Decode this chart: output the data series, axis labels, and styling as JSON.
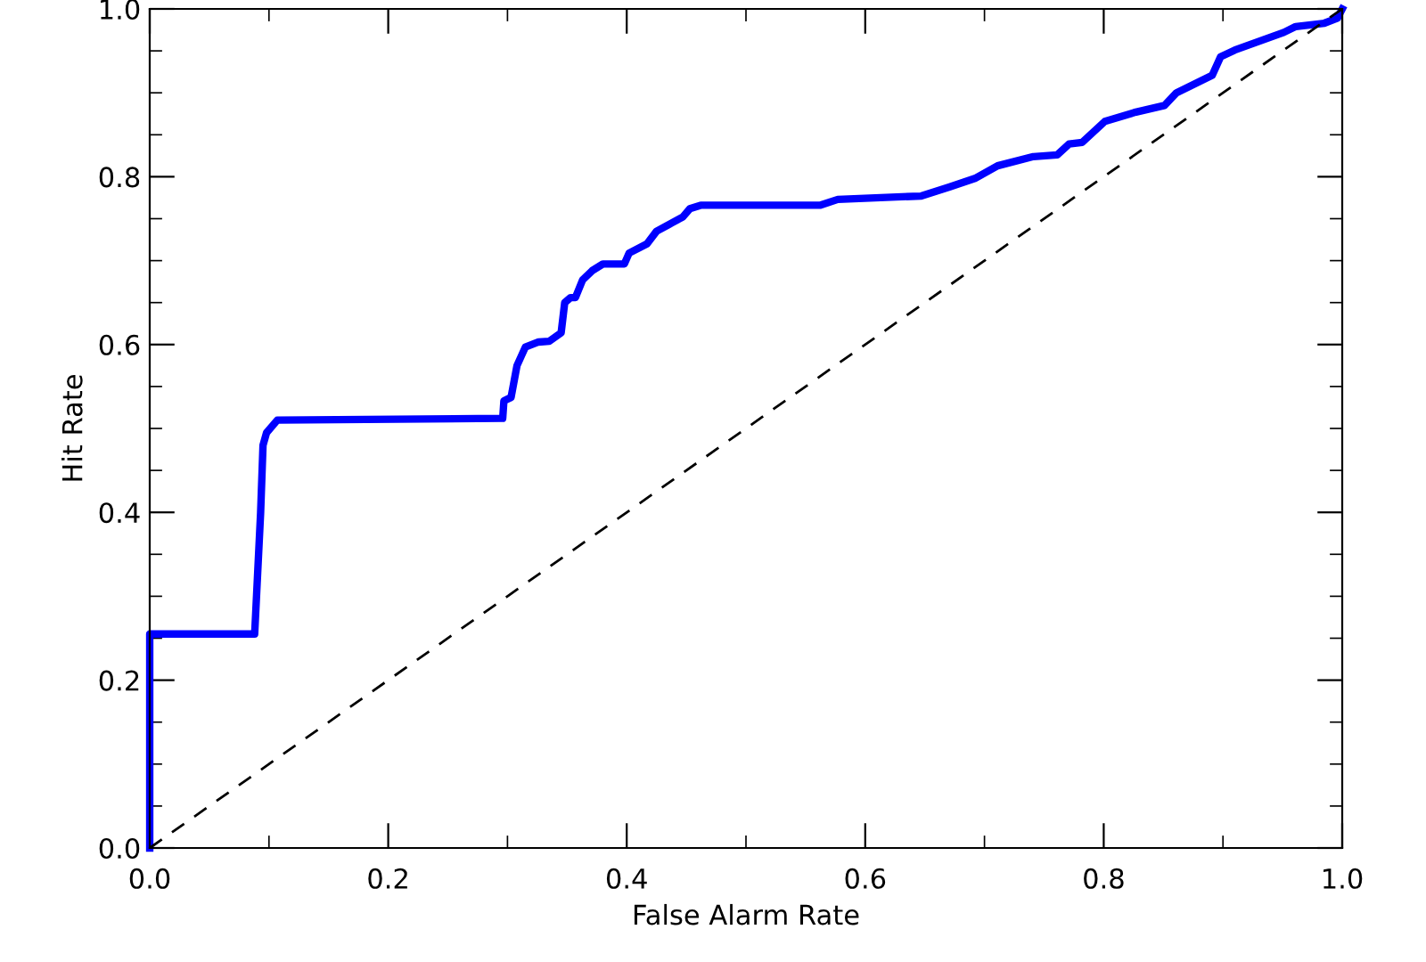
{
  "chart_data": {
    "type": "line",
    "xlabel": "False Alarm Rate",
    "ylabel": "Hit Rate",
    "xlim": [
      0,
      1
    ],
    "ylim": [
      0,
      1
    ],
    "xticks": [
      {
        "value": 0,
        "label": "0.0"
      },
      {
        "value": 0.2,
        "label": "0.2"
      },
      {
        "value": 0.4,
        "label": "0.4"
      },
      {
        "value": 0.6,
        "label": "0.6"
      },
      {
        "value": 0.8,
        "label": "0.8"
      },
      {
        "value": 1,
        "label": "1.0"
      }
    ],
    "yticks": [
      {
        "value": 0,
        "label": "0.0"
      },
      {
        "value": 0.2,
        "label": "0.2"
      },
      {
        "value": 0.4,
        "label": "0.4"
      },
      {
        "value": 0.6,
        "label": "0.6"
      },
      {
        "value": 0.8,
        "label": "0.8"
      },
      {
        "value": 1,
        "label": "1.0"
      }
    ],
    "grid": false,
    "legend": false,
    "marker": "none",
    "series": [
      {
        "color": "#0000ff",
        "line_style": "solid",
        "x": [
          0,
          0,
          0.088,
          0.093,
          0.095,
          0.098,
          0.107,
          0.296,
          0.297,
          0.303,
          0.308,
          0.315,
          0.326,
          0.335,
          0.345,
          0.348,
          0.353,
          0.357,
          0.363,
          0.371,
          0.38,
          0.398,
          0.402,
          0.417,
          0.425,
          0.438,
          0.447,
          0.453,
          0.462,
          0.562,
          0.577,
          0.647,
          0.671,
          0.692,
          0.711,
          0.741,
          0.761,
          0.771,
          0.782,
          0.801,
          0.827,
          0.851,
          0.861,
          0.891,
          0.898,
          0.91,
          0.951,
          0.961,
          0.985,
          0.996,
          1.0
        ],
        "values": [
          0,
          0.255,
          0.255,
          0.4,
          0.48,
          0.495,
          0.51,
          0.512,
          0.533,
          0.537,
          0.575,
          0.597,
          0.603,
          0.604,
          0.614,
          0.65,
          0.656,
          0.656,
          0.677,
          0.688,
          0.696,
          0.696,
          0.709,
          0.72,
          0.735,
          0.745,
          0.752,
          0.762,
          0.766,
          0.766,
          0.773,
          0.777,
          0.788,
          0.798,
          0.813,
          0.824,
          0.826,
          0.839,
          0.841,
          0.866,
          0.877,
          0.885,
          0.9,
          0.921,
          0.943,
          0.951,
          0.972,
          0.979,
          0.983,
          0.989,
          1.0
        ]
      },
      {
        "color": "#000000",
        "line_style": "dashed",
        "x": [
          0,
          1
        ],
        "values": [
          0,
          1
        ]
      }
    ]
  }
}
